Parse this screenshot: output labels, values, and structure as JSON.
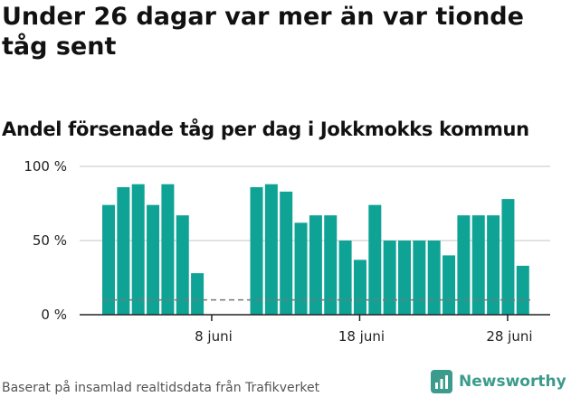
{
  "title": "Under 26 dagar var mer än var tionde tåg sent",
  "subtitle": "Andel försenade tåg per dag i Jokkmokks kommun",
  "footer": "Baserat på insamlad realtidsdata från Trafikverket",
  "brand": {
    "name": "Newsworthy",
    "color": "#3b9b8c"
  },
  "colors": {
    "bar": "#0fa396",
    "grid": "#d9d9d9",
    "axis": "#222222",
    "reference_line": "#777777"
  },
  "chart_data": {
    "type": "bar",
    "x_tick_labels": [
      {
        "day": 8,
        "label": "8 juni"
      },
      {
        "day": 18,
        "label": "18 juni"
      },
      {
        "day": 28,
        "label": "28 juni"
      }
    ],
    "y_tick_labels": [
      {
        "value": 0,
        "label": "0 %"
      },
      {
        "value": 50,
        "label": "50 %"
      },
      {
        "value": 100,
        "label": "100 %"
      }
    ],
    "ylim": [
      0,
      100
    ],
    "grid": true,
    "reference_line": {
      "value": 10,
      "style": "dashed"
    },
    "x": [
      1,
      2,
      3,
      4,
      5,
      6,
      7,
      8,
      9,
      10,
      11,
      12,
      13,
      14,
      15,
      16,
      17,
      18,
      19,
      20,
      21,
      22,
      23,
      24,
      25,
      26,
      27,
      28,
      29
    ],
    "values": [
      74,
      86,
      88,
      74,
      88,
      67,
      28,
      0,
      0,
      0,
      86,
      88,
      83,
      62,
      67,
      67,
      50,
      37,
      74,
      50,
      50,
      50,
      50,
      40,
      67,
      67,
      67,
      78,
      33
    ]
  }
}
